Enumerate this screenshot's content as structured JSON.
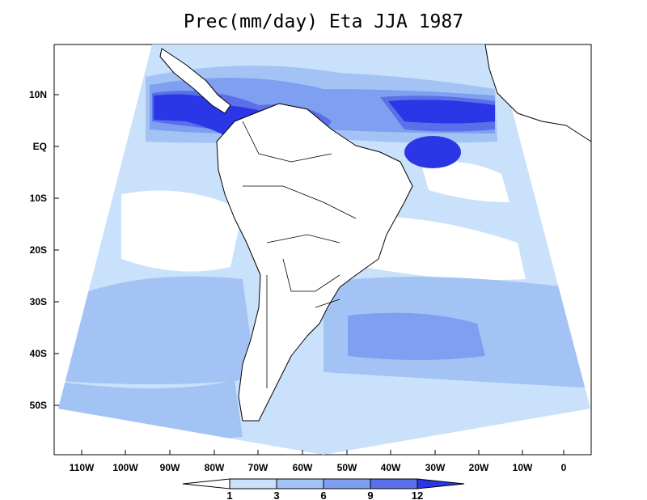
{
  "title": "Prec(mm/day) Eta JJA 1987",
  "colors": {
    "c1_3": "#c9e1fa",
    "c3_6": "#a4c3f5",
    "c6_9": "#7f9ff0",
    "c9_12": "#5b6fe8",
    "c12p": "#2b36e6",
    "ocean_low": "#ffffff"
  },
  "map": {
    "lon_labels": [
      "110W",
      "100W",
      "90W",
      "80W",
      "70W",
      "60W",
      "50W",
      "40W",
      "30W",
      "20W",
      "10W",
      "0"
    ],
    "lat_labels": [
      "10N",
      "EQ",
      "10S",
      "20S",
      "30S",
      "40S",
      "50S"
    ]
  },
  "colorbar": {
    "levels": [
      "1",
      "3",
      "6",
      "9",
      "12"
    ],
    "colors": [
      "#ffffff",
      "#c9e1fa",
      "#a4c3f5",
      "#7f9ff0",
      "#5b6fe8",
      "#2b36e6"
    ]
  }
}
